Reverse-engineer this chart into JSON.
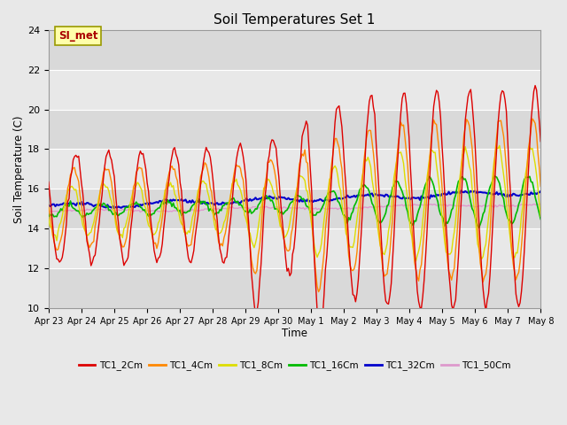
{
  "title": "Soil Temperatures Set 1",
  "xlabel": "Time",
  "ylabel": "Soil Temperature (C)",
  "ylim": [
    10,
    24
  ],
  "yticks": [
    10,
    12,
    14,
    16,
    18,
    20,
    22,
    24
  ],
  "x_labels": [
    "Apr 23",
    "Apr 24",
    "Apr 25",
    "Apr 26",
    "Apr 27",
    "Apr 28",
    "Apr 29",
    "Apr 30",
    "May 1",
    "May 2",
    "May 3",
    "May 4",
    "May 5",
    "May 6",
    "May 7",
    "May 8"
  ],
  "annotation_text": "SI_met",
  "colors": {
    "TC1_2Cm": "#dd0000",
    "TC1_4Cm": "#ff8800",
    "TC1_8Cm": "#dddd00",
    "TC1_16Cm": "#00bb00",
    "TC1_32Cm": "#0000cc",
    "TC1_50Cm": "#dd99cc"
  },
  "plot_bg_color": "#e8e8e8",
  "fig_bg_color": "#e8e8e8",
  "grid_color": "#ffffff",
  "series_labels": [
    "TC1_2Cm",
    "TC1_4Cm",
    "TC1_8Cm",
    "TC1_16Cm",
    "TC1_32Cm",
    "TC1_50Cm"
  ]
}
